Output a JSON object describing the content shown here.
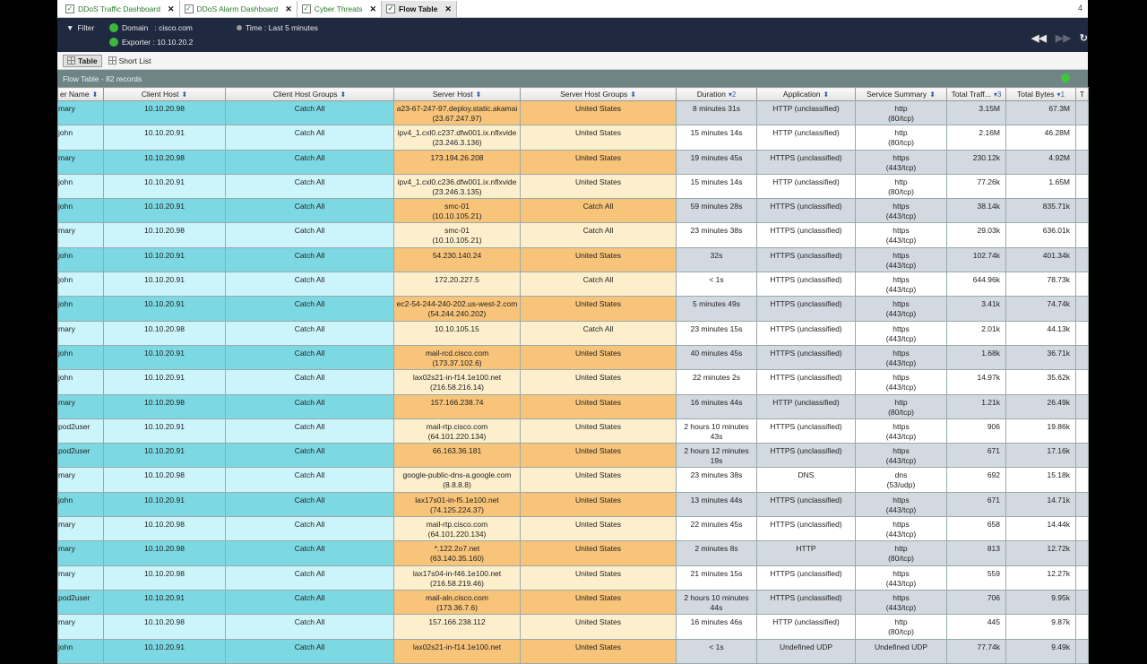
{
  "tabs": [
    {
      "label": "DDoS Traffic Dashboard"
    },
    {
      "label": "DDoS Alarm Dashboard"
    },
    {
      "label": "Cyber Threats"
    },
    {
      "label": "Flow Table",
      "active": true
    }
  ],
  "tab_overflow": "4",
  "filter": {
    "label": "Filter",
    "domain": "Domain   : cisco.com",
    "exporter": "Exporter : 10.10.20.2",
    "time": "Time : Last 5 minutes"
  },
  "views": [
    {
      "label": "Table"
    },
    {
      "label": "Short List"
    }
  ],
  "table_title": "Flow Table - 82 records",
  "columns": [
    {
      "label": "er Name",
      "sort": "⬍"
    },
    {
      "label": "Client Host",
      "sort": "⬍"
    },
    {
      "label": "Client Host Groups",
      "sort": "⬍"
    },
    {
      "label": "Server Host",
      "sort": "⬍"
    },
    {
      "label": "Server Host Groups",
      "sort": "⬍"
    },
    {
      "label": "Duration",
      "sort": "▾2"
    },
    {
      "label": "Application",
      "sort": "⬍"
    },
    {
      "label": "Service Summary",
      "sort": "⬍"
    },
    {
      "label": "Total Traff...",
      "sort": "▾3"
    },
    {
      "label": "Total Bytes",
      "sort": "▾1"
    },
    {
      "label": "T",
      "sort": ""
    }
  ],
  "rows": [
    [
      "mary",
      "10.10.20.98",
      "Catch All",
      "a23-67-247-97.deploy.static.akamai\n(23.67.247.97)",
      "United States",
      "8 minutes 31s",
      "HTTP (unclassified)",
      "http\n(80/tcp)",
      "3.15M",
      "67.3M"
    ],
    [
      "john",
      "10.10.20.91",
      "Catch All",
      "ipv4_1.cxl0.c237.dfw001.ix.nflxvide\n(23.246.3.136)",
      "United States",
      "15 minutes 14s",
      "HTTP (unclassified)",
      "http\n(80/tcp)",
      "2.16M",
      "46.28M"
    ],
    [
      "mary",
      "10.10.20.98",
      "Catch All",
      "173.194.26.208",
      "United States",
      "19 minutes 45s",
      "HTTPS (unclassified)",
      "https\n(443/tcp)",
      "230.12k",
      "4.92M"
    ],
    [
      "john",
      "10.10.20.91",
      "Catch All",
      "ipv4_1.cxl0.c236.dfw001.ix.nflxvide\n(23.246.3.135)",
      "United States",
      "15 minutes 14s",
      "HTTP (unclassified)",
      "http\n(80/tcp)",
      "77.26k",
      "1.65M"
    ],
    [
      "john",
      "10.10.20.91",
      "Catch All",
      "smc-01\n(10.10.105.21)",
      "Catch All",
      "59 minutes 28s",
      "HTTPS (unclassified)",
      "https\n(443/tcp)",
      "38.14k",
      "835.71k"
    ],
    [
      "mary",
      "10.10.20.98",
      "Catch All",
      "smc-01\n(10.10.105.21)",
      "Catch All",
      "23 minutes 38s",
      "HTTPS (unclassified)",
      "https\n(443/tcp)",
      "29.03k",
      "636.01k"
    ],
    [
      "john",
      "10.10.20.91",
      "Catch All",
      "54.230.140.24",
      "United States",
      "32s",
      "HTTPS (unclassified)",
      "https\n(443/tcp)",
      "102.74k",
      "401.34k"
    ],
    [
      "john",
      "10.10.20.91",
      "Catch All",
      "172.20.227.5",
      "Catch All",
      "< 1s",
      "HTTPS (unclassified)",
      "https\n(443/tcp)",
      "644.96k",
      "78.73k"
    ],
    [
      "john",
      "10.10.20.91",
      "Catch All",
      "ec2-54-244-240-202.us-west-2.com\n(54.244.240.202)",
      "United States",
      "5 minutes 49s",
      "HTTPS (unclassified)",
      "https\n(443/tcp)",
      "3.41k",
      "74.74k"
    ],
    [
      "mary",
      "10.10.20.98",
      "Catch All",
      "10.10.105.15",
      "Catch All",
      "23 minutes 15s",
      "HTTPS (unclassified)",
      "https\n(443/tcp)",
      "2.01k",
      "44.13k"
    ],
    [
      "john",
      "10.10.20.91",
      "Catch All",
      "mail-rcd.cisco.com\n(173.37.102.6)",
      "United States",
      "40 minutes 45s",
      "HTTPS (unclassified)",
      "https\n(443/tcp)",
      "1.68k",
      "36.71k"
    ],
    [
      "john",
      "10.10.20.91",
      "Catch All",
      "lax02s21-in-f14.1e100.net\n(216.58.216.14)",
      "United States",
      "22 minutes 2s",
      "HTTPS (unclassified)",
      "https\n(443/tcp)",
      "14.97k",
      "35.62k"
    ],
    [
      "mary",
      "10.10.20.98",
      "Catch All",
      "157.166.238.74",
      "United States",
      "16 minutes 44s",
      "HTTP (unclassified)",
      "http\n(80/tcp)",
      "1.21k",
      "26.49k"
    ],
    [
      "pod2user",
      "10.10.20.91",
      "Catch All",
      "mail-rtp.cisco.com\n(64.101.220.134)",
      "United States",
      "2 hours 10 minutes\n43s",
      "HTTPS (unclassified)",
      "https\n(443/tcp)",
      "906",
      "19.86k"
    ],
    [
      "pod2user",
      "10.10.20.91",
      "Catch All",
      "66.163.36.181",
      "United States",
      "2 hours 12 minutes\n19s",
      "HTTPS (unclassified)",
      "https\n(443/tcp)",
      "671",
      "17.16k"
    ],
    [
      "mary",
      "10.10.20.98",
      "Catch All",
      "google-public-dns-a.google.com\n(8.8.8.8)",
      "United States",
      "23 minutes 38s",
      "DNS",
      "dns\n(53/udp)",
      "692",
      "15.18k"
    ],
    [
      "john",
      "10.10.20.91",
      "Catch All",
      "lax17s01-in-f5.1e100.net\n(74.125.224.37)",
      "United States",
      "13 minutes 44s",
      "HTTPS (unclassified)",
      "https\n(443/tcp)",
      "671",
      "14.71k"
    ],
    [
      "mary",
      "10.10.20.98",
      "Catch All",
      "mail-rtp.cisco.com\n(64.101.220.134)",
      "United States",
      "22 minutes 45s",
      "HTTPS (unclassified)",
      "https\n(443/tcp)",
      "658",
      "14.44k"
    ],
    [
      "mary",
      "10.10.20.98",
      "Catch All",
      "*.122.2o7.net\n(63.140.35.160)",
      "United States",
      "2 minutes 8s",
      "HTTP",
      "http\n(80/tcp)",
      "813",
      "12.72k"
    ],
    [
      "mary",
      "10.10.20.98",
      "Catch All",
      "lax17s04-in-f46.1e100.net\n(216.58.219.46)",
      "United States",
      "21 minutes 15s",
      "HTTPS (unclassified)",
      "https\n(443/tcp)",
      "559",
      "12.27k"
    ],
    [
      "pod2user",
      "10.10.20.91",
      "Catch All",
      "mail-aln.cisco.com\n(173.36.7.6)",
      "United States",
      "2 hours 10 minutes\n44s",
      "HTTPS (unclassified)",
      "https\n(443/tcp)",
      "706",
      "9.95k"
    ],
    [
      "mary",
      "10.10.20.98",
      "Catch All",
      "157.166.238.112",
      "United States",
      "16 minutes 46s",
      "HTTP (unclassified)",
      "http\n(80/tcp)",
      "445",
      "9.87k"
    ],
    [
      "john",
      "10.10.20.91",
      "Catch All",
      "lax02s21-in-f14.1e100.net",
      "United States",
      "< 1s",
      "Undefined UDP",
      "Undefined UDP",
      "77.74k",
      "9.49k"
    ]
  ],
  "colors": {
    "toolbar": "#1f2a40",
    "client_dark": "#7cd8e2",
    "client_light": "#ccf5fb",
    "server_dark": "#f8c47a",
    "server_light": "#fdefcc",
    "title_bar": "#6f8585"
  }
}
